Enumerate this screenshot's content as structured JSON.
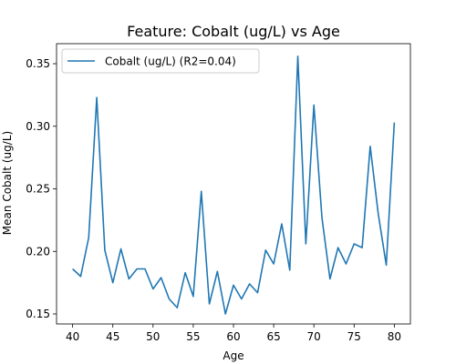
{
  "chart_data": {
    "type": "line",
    "title": "Feature: Cobalt (ug/L) vs Age",
    "xlabel": "Age",
    "ylabel": "Mean Cobalt (ug/L)",
    "xlim": [
      38.0,
      82.0
    ],
    "ylim": [
      0.142,
      0.366
    ],
    "x_ticks": [
      40,
      45,
      50,
      55,
      60,
      65,
      70,
      75,
      80
    ],
    "y_ticks": [
      0.15,
      0.2,
      0.25,
      0.3,
      0.35
    ],
    "y_tick_labels": [
      "0.15",
      "0.20",
      "0.25",
      "0.30",
      "0.35"
    ],
    "legend_position": "upper-left",
    "grid": false,
    "series": [
      {
        "name": "Cobalt (ug/L) (R2=0.04)",
        "color": "#1f77b4",
        "x": [
          40,
          41,
          42,
          43,
          44,
          45,
          46,
          47,
          48,
          49,
          50,
          51,
          52,
          53,
          54,
          55,
          56,
          57,
          58,
          59,
          60,
          61,
          62,
          63,
          64,
          65,
          66,
          67,
          68,
          69,
          70,
          71,
          72,
          73,
          74,
          75,
          76,
          77,
          78,
          79,
          80
        ],
        "values": [
          0.186,
          0.18,
          0.211,
          0.323,
          0.201,
          0.175,
          0.202,
          0.178,
          0.186,
          0.186,
          0.17,
          0.179,
          0.162,
          0.155,
          0.183,
          0.164,
          0.248,
          0.158,
          0.184,
          0.15,
          0.173,
          0.162,
          0.174,
          0.167,
          0.201,
          0.19,
          0.222,
          0.185,
          0.356,
          0.206,
          0.317,
          0.227,
          0.178,
          0.203,
          0.19,
          0.206,
          0.203,
          0.284,
          0.23,
          0.189,
          0.303
        ]
      }
    ]
  }
}
